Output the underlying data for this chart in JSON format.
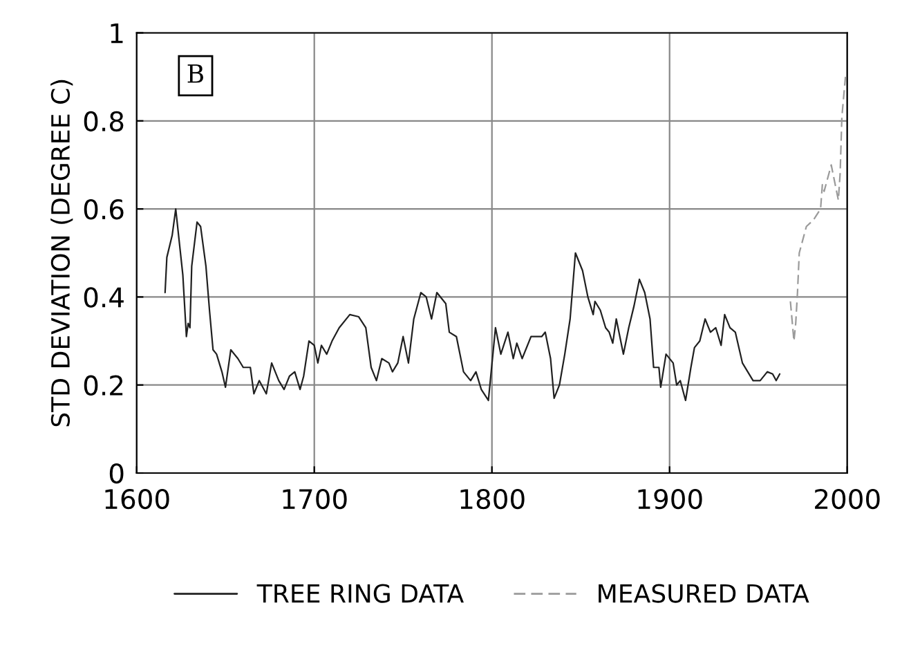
{
  "chart_data": {
    "type": "line",
    "ylabel": "STD DEVIATION (DEGREE C)",
    "annotations": [
      "B"
    ],
    "xlim": [
      1600,
      2000
    ],
    "xticks": [
      1600,
      1700,
      1800,
      1900,
      2000
    ],
    "ylim": [
      0,
      1
    ],
    "yticks": [
      0,
      0.2,
      0.4,
      0.6,
      0.8,
      1
    ],
    "grid": true,
    "legend": "bottom",
    "series": [
      {
        "name": "TREE RING DATA",
        "color": "#202020",
        "line_style": "solid",
        "x": [
          1616,
          1617,
          1620,
          1622,
          1626,
          1628,
          1629,
          1630,
          1631,
          1634,
          1636,
          1639,
          1641,
          1643,
          1645,
          1648,
          1650,
          1653,
          1657,
          1660,
          1664,
          1666,
          1669,
          1673,
          1676,
          1680,
          1683,
          1686,
          1689,
          1692,
          1694,
          1697,
          1700,
          1702,
          1704,
          1707,
          1710,
          1714,
          1720,
          1725,
          1729,
          1732,
          1735,
          1738,
          1742,
          1744,
          1747,
          1750,
          1753,
          1756,
          1760,
          1763,
          1766,
          1769,
          1774,
          1776,
          1780,
          1784,
          1788,
          1791,
          1794,
          1798,
          1802,
          1805,
          1809,
          1812,
          1814,
          1817,
          1822,
          1828,
          1830,
          1833,
          1835,
          1838,
          1841,
          1844,
          1847,
          1851,
          1854,
          1857,
          1858,
          1861,
          1864,
          1866,
          1868,
          1870,
          1874,
          1877,
          1880,
          1883,
          1886,
          1889,
          1891,
          1894,
          1895,
          1898,
          1902,
          1904,
          1906,
          1909,
          1912,
          1914,
          1917,
          1920,
          1923,
          1926,
          1929,
          1931,
          1934,
          1937,
          1941,
          1944,
          1947,
          1951,
          1955,
          1958,
          1960,
          1962
        ],
        "values": [
          0.41,
          0.49,
          0.54,
          0.6,
          0.45,
          0.31,
          0.34,
          0.33,
          0.47,
          0.57,
          0.56,
          0.47,
          0.37,
          0.28,
          0.27,
          0.23,
          0.195,
          0.28,
          0.26,
          0.24,
          0.24,
          0.18,
          0.21,
          0.18,
          0.25,
          0.21,
          0.19,
          0.22,
          0.23,
          0.19,
          0.22,
          0.3,
          0.29,
          0.25,
          0.29,
          0.27,
          0.3,
          0.33,
          0.36,
          0.355,
          0.33,
          0.24,
          0.21,
          0.26,
          0.25,
          0.23,
          0.25,
          0.31,
          0.25,
          0.35,
          0.41,
          0.4,
          0.35,
          0.41,
          0.385,
          0.32,
          0.31,
          0.23,
          0.21,
          0.23,
          0.19,
          0.165,
          0.33,
          0.27,
          0.32,
          0.26,
          0.295,
          0.26,
          0.31,
          0.31,
          0.32,
          0.26,
          0.17,
          0.2,
          0.27,
          0.35,
          0.5,
          0.46,
          0.4,
          0.36,
          0.39,
          0.37,
          0.33,
          0.32,
          0.295,
          0.35,
          0.27,
          0.33,
          0.38,
          0.44,
          0.41,
          0.35,
          0.24,
          0.24,
          0.195,
          0.27,
          0.25,
          0.2,
          0.21,
          0.165,
          0.24,
          0.285,
          0.3,
          0.35,
          0.32,
          0.33,
          0.29,
          0.36,
          0.33,
          0.32,
          0.25,
          0.23,
          0.21,
          0.21,
          0.23,
          0.225,
          0.21,
          0.225
        ]
      },
      {
        "name": "MEASURED DATA",
        "color": "#9a9a9a",
        "line_style": "dashed",
        "x": [
          1968,
          1970,
          1971,
          1972,
          1973,
          1975,
          1977,
          1981,
          1985,
          1986,
          1987,
          1991,
          1994,
          1995,
          1996,
          1997,
          1999
        ],
        "values": [
          0.39,
          0.3,
          0.34,
          0.41,
          0.5,
          0.53,
          0.56,
          0.575,
          0.6,
          0.655,
          0.64,
          0.7,
          0.64,
          0.62,
          0.68,
          0.81,
          0.9
        ]
      }
    ]
  }
}
